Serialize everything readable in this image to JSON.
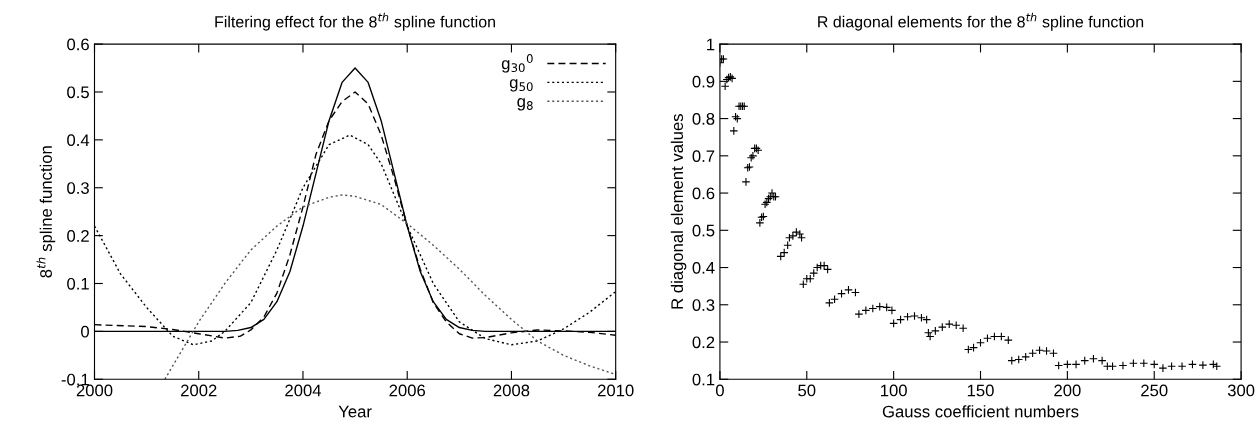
{
  "chart_data": [
    {
      "type": "line",
      "title": "Filtering effect for the 8$^{th}$ spline function",
      "xlabel": "Year",
      "ylabel": "8$^{th}$ spline function",
      "xlim": [
        2000,
        2010
      ],
      "xticks": [
        2000,
        2002,
        2004,
        2006,
        2008,
        2010
      ],
      "ylim": [
        -0.1,
        0.6
      ],
      "yticks": [
        -0.1,
        0,
        0.1,
        0.2,
        0.3,
        0.4,
        0.5,
        0.6
      ],
      "grid": false,
      "legend": "top right",
      "marker": "none",
      "series": [
        {
          "color": "#000000",
          "line_style": "solid",
          "x": [
            2000,
            2001,
            2002,
            2002.5,
            2002.75,
            2003,
            2003.25,
            2003.5,
            2003.75,
            2004,
            2004.25,
            2004.5,
            2004.75,
            2005,
            2005.25,
            2005.5,
            2005.75,
            2006,
            2006.25,
            2006.5,
            2006.75,
            2007,
            2007.25,
            2007.5,
            2008,
            2009,
            2010
          ],
          "values": [
            0,
            0,
            0,
            0,
            0.002,
            0.008,
            0.025,
            0.062,
            0.125,
            0.22,
            0.33,
            0.44,
            0.52,
            0.55,
            0.52,
            0.44,
            0.33,
            0.22,
            0.125,
            0.062,
            0.025,
            0.008,
            0.002,
            0,
            0,
            0,
            0
          ]
        },
        {
          "name": "g$_{30}$$^{0}$",
          "color": "#000000",
          "line_style": "dashed",
          "x": [
            2000,
            2001,
            2001.5,
            2002,
            2002.5,
            2002.8,
            2003,
            2003.25,
            2003.5,
            2003.75,
            2004,
            2004.25,
            2004.5,
            2004.75,
            2005,
            2005.25,
            2005.5,
            2005.75,
            2006,
            2006.25,
            2006.5,
            2006.75,
            2007,
            2007.25,
            2007.5,
            2008,
            2008.5,
            2009,
            2009.5,
            2010
          ],
          "values": [
            0.014,
            0.01,
            0.004,
            -0.005,
            -0.014,
            -0.01,
            0.003,
            0.03,
            0.08,
            0.16,
            0.26,
            0.37,
            0.44,
            0.48,
            0.5,
            0.475,
            0.41,
            0.32,
            0.22,
            0.13,
            0.06,
            0.02,
            -0.005,
            -0.014,
            -0.013,
            -0.003,
            0.003,
            0.001,
            -0.002,
            -0.008
          ]
        },
        {
          "name": "g$_{50}$",
          "color": "#000000",
          "line_style": "dotted",
          "x": [
            2000,
            2000.5,
            2001,
            2001.5,
            2001.9,
            2002.25,
            2002.5,
            2003,
            2003.5,
            2004,
            2004.5,
            2004.9,
            2005.25,
            2005.5,
            2006,
            2006.5,
            2007,
            2007.5,
            2008,
            2008.5,
            2009,
            2009.5,
            2010
          ],
          "values": [
            0.22,
            0.12,
            0.05,
            -0.01,
            -0.028,
            -0.02,
            0,
            0.06,
            0.17,
            0.3,
            0.39,
            0.41,
            0.39,
            0.35,
            0.22,
            0.1,
            0.02,
            -0.015,
            -0.028,
            -0.02,
            0.005,
            0.04,
            0.083
          ]
        },
        {
          "name": "g$_{8}$",
          "color": "#555555",
          "line_style": "dotted",
          "x": [
            2001.35,
            2002,
            2002.5,
            2003,
            2003.5,
            2004,
            2004.5,
            2004.75,
            2005,
            2005.5,
            2006,
            2006.5,
            2007,
            2007.5,
            2008,
            2008.5,
            2009,
            2009.5,
            2010
          ],
          "values": [
            -0.1,
            0.02,
            0.1,
            0.17,
            0.22,
            0.26,
            0.28,
            0.285,
            0.282,
            0.265,
            0.225,
            0.18,
            0.13,
            0.075,
            0.025,
            -0.02,
            -0.05,
            -0.072,
            -0.09
          ]
        }
      ]
    },
    {
      "type": "scatter",
      "title": "R diagonal elements for the 8$^{th}$ spline function",
      "xlabel": "Gauss coefficient numbers",
      "ylabel": "R diagonal element values",
      "xlim": [
        0,
        300
      ],
      "xticks": [
        0,
        50,
        100,
        150,
        200,
        250,
        300
      ],
      "ylim": [
        0.1,
        1
      ],
      "yticks": [
        0.1,
        0.2,
        0.3,
        0.4,
        0.5,
        0.6,
        0.7,
        0.8,
        0.9,
        1
      ],
      "grid": false,
      "legend": false,
      "marker": "cross",
      "series": [
        {
          "color": "#000000",
          "x": [
            0,
            1,
            2,
            3,
            4,
            5,
            6,
            7,
            8,
            9,
            10,
            11,
            12,
            13,
            14,
            15,
            16,
            17,
            18,
            19,
            20,
            21,
            22,
            23,
            24,
            25,
            26,
            27,
            28,
            29,
            30,
            31,
            32,
            35,
            37,
            39,
            40,
            42,
            44,
            46,
            47,
            48,
            50,
            52,
            54,
            56,
            58,
            60,
            62,
            63,
            66,
            70,
            74,
            78,
            80,
            84,
            88,
            92,
            96,
            99,
            100,
            104,
            108,
            112,
            116,
            119,
            120,
            121,
            124,
            128,
            132,
            136,
            140,
            143,
            146,
            150,
            154,
            158,
            162,
            166,
            168,
            172,
            176,
            180,
            184,
            188,
            192,
            195,
            200,
            205,
            210,
            215,
            220,
            223,
            226,
            232,
            238,
            244,
            250,
            255,
            260,
            266,
            272,
            278,
            284,
            286
          ],
          "values": [
            0.95,
            0.96,
            0.96,
            0.887,
            0.905,
            0.91,
            0.912,
            0.908,
            0.767,
            0.805,
            0.8,
            0.833,
            0.833,
            0.833,
            0.833,
            0.63,
            0.668,
            0.67,
            0.695,
            0.7,
            0.72,
            0.72,
            0.715,
            0.52,
            0.535,
            0.537,
            0.57,
            0.575,
            0.585,
            0.59,
            0.6,
            0.59,
            0.59,
            0.43,
            0.44,
            0.46,
            0.48,
            0.485,
            0.495,
            0.49,
            0.48,
            0.355,
            0.37,
            0.37,
            0.385,
            0.4,
            0.405,
            0.405,
            0.395,
            0.305,
            0.315,
            0.33,
            0.34,
            0.333,
            0.275,
            0.285,
            0.29,
            0.295,
            0.293,
            0.285,
            0.25,
            0.26,
            0.268,
            0.27,
            0.265,
            0.26,
            0.225,
            0.215,
            0.23,
            0.24,
            0.248,
            0.245,
            0.237,
            0.18,
            0.185,
            0.198,
            0.21,
            0.215,
            0.215,
            0.205,
            0.15,
            0.153,
            0.16,
            0.17,
            0.178,
            0.176,
            0.17,
            0.137,
            0.14,
            0.14,
            0.15,
            0.155,
            0.15,
            0.135,
            0.135,
            0.137,
            0.143,
            0.143,
            0.14,
            0.13,
            0.135,
            0.135,
            0.14,
            0.138,
            0.14,
            0.135
          ]
        }
      ]
    }
  ]
}
